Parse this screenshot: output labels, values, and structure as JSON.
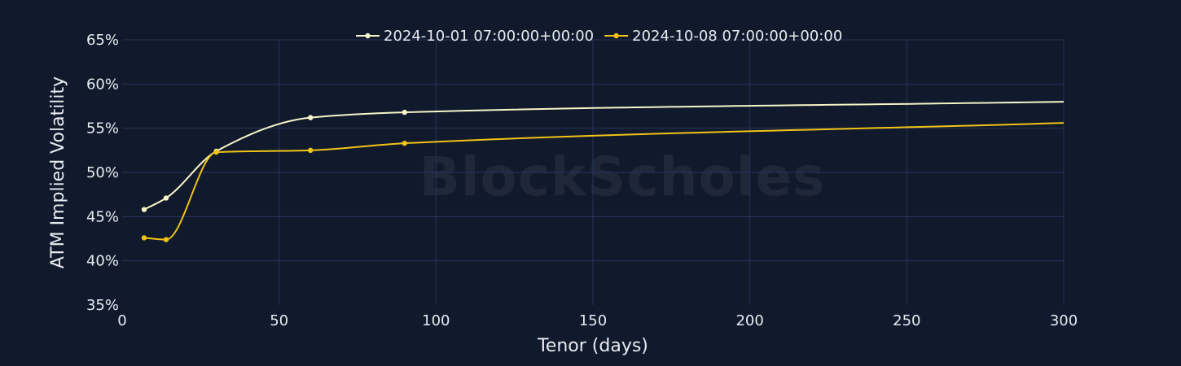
{
  "chart_data": {
    "type": "line",
    "xlabel": "Tenor (days)",
    "ylabel": "ATM Implied Volatility",
    "xlim": [
      0,
      300
    ],
    "ylim": [
      35,
      65
    ],
    "x_ticks": [
      0,
      50,
      100,
      150,
      200,
      250,
      300
    ],
    "y_ticks": [
      35,
      40,
      45,
      50,
      55,
      60,
      65
    ],
    "x_tick_labels": [
      "0",
      "50",
      "100",
      "150",
      "200",
      "250",
      "300"
    ],
    "y_tick_labels": [
      "35%",
      "40%",
      "45%",
      "50%",
      "55%",
      "60%",
      "65%"
    ],
    "y_unit": "%",
    "grid": true,
    "legend_position": "top-center",
    "watermark": "BlockScholes",
    "series": [
      {
        "name": "2024-10-01 07:00:00+00:00",
        "color": "#f5f5c8",
        "x": [
          7,
          14,
          30,
          60,
          90,
          300
        ],
        "y": [
          45.8,
          47.1,
          52.4,
          56.2,
          56.8,
          58.0
        ],
        "markers": [
          true,
          true,
          true,
          true,
          true,
          false
        ]
      },
      {
        "name": "2024-10-08 07:00:00+00:00",
        "color": "#f2c316",
        "x": [
          7,
          14,
          30,
          60,
          90,
          300
        ],
        "y": [
          42.6,
          42.4,
          52.3,
          52.5,
          53.3,
          55.6
        ],
        "markers": [
          true,
          true,
          true,
          true,
          true,
          false
        ]
      }
    ]
  }
}
